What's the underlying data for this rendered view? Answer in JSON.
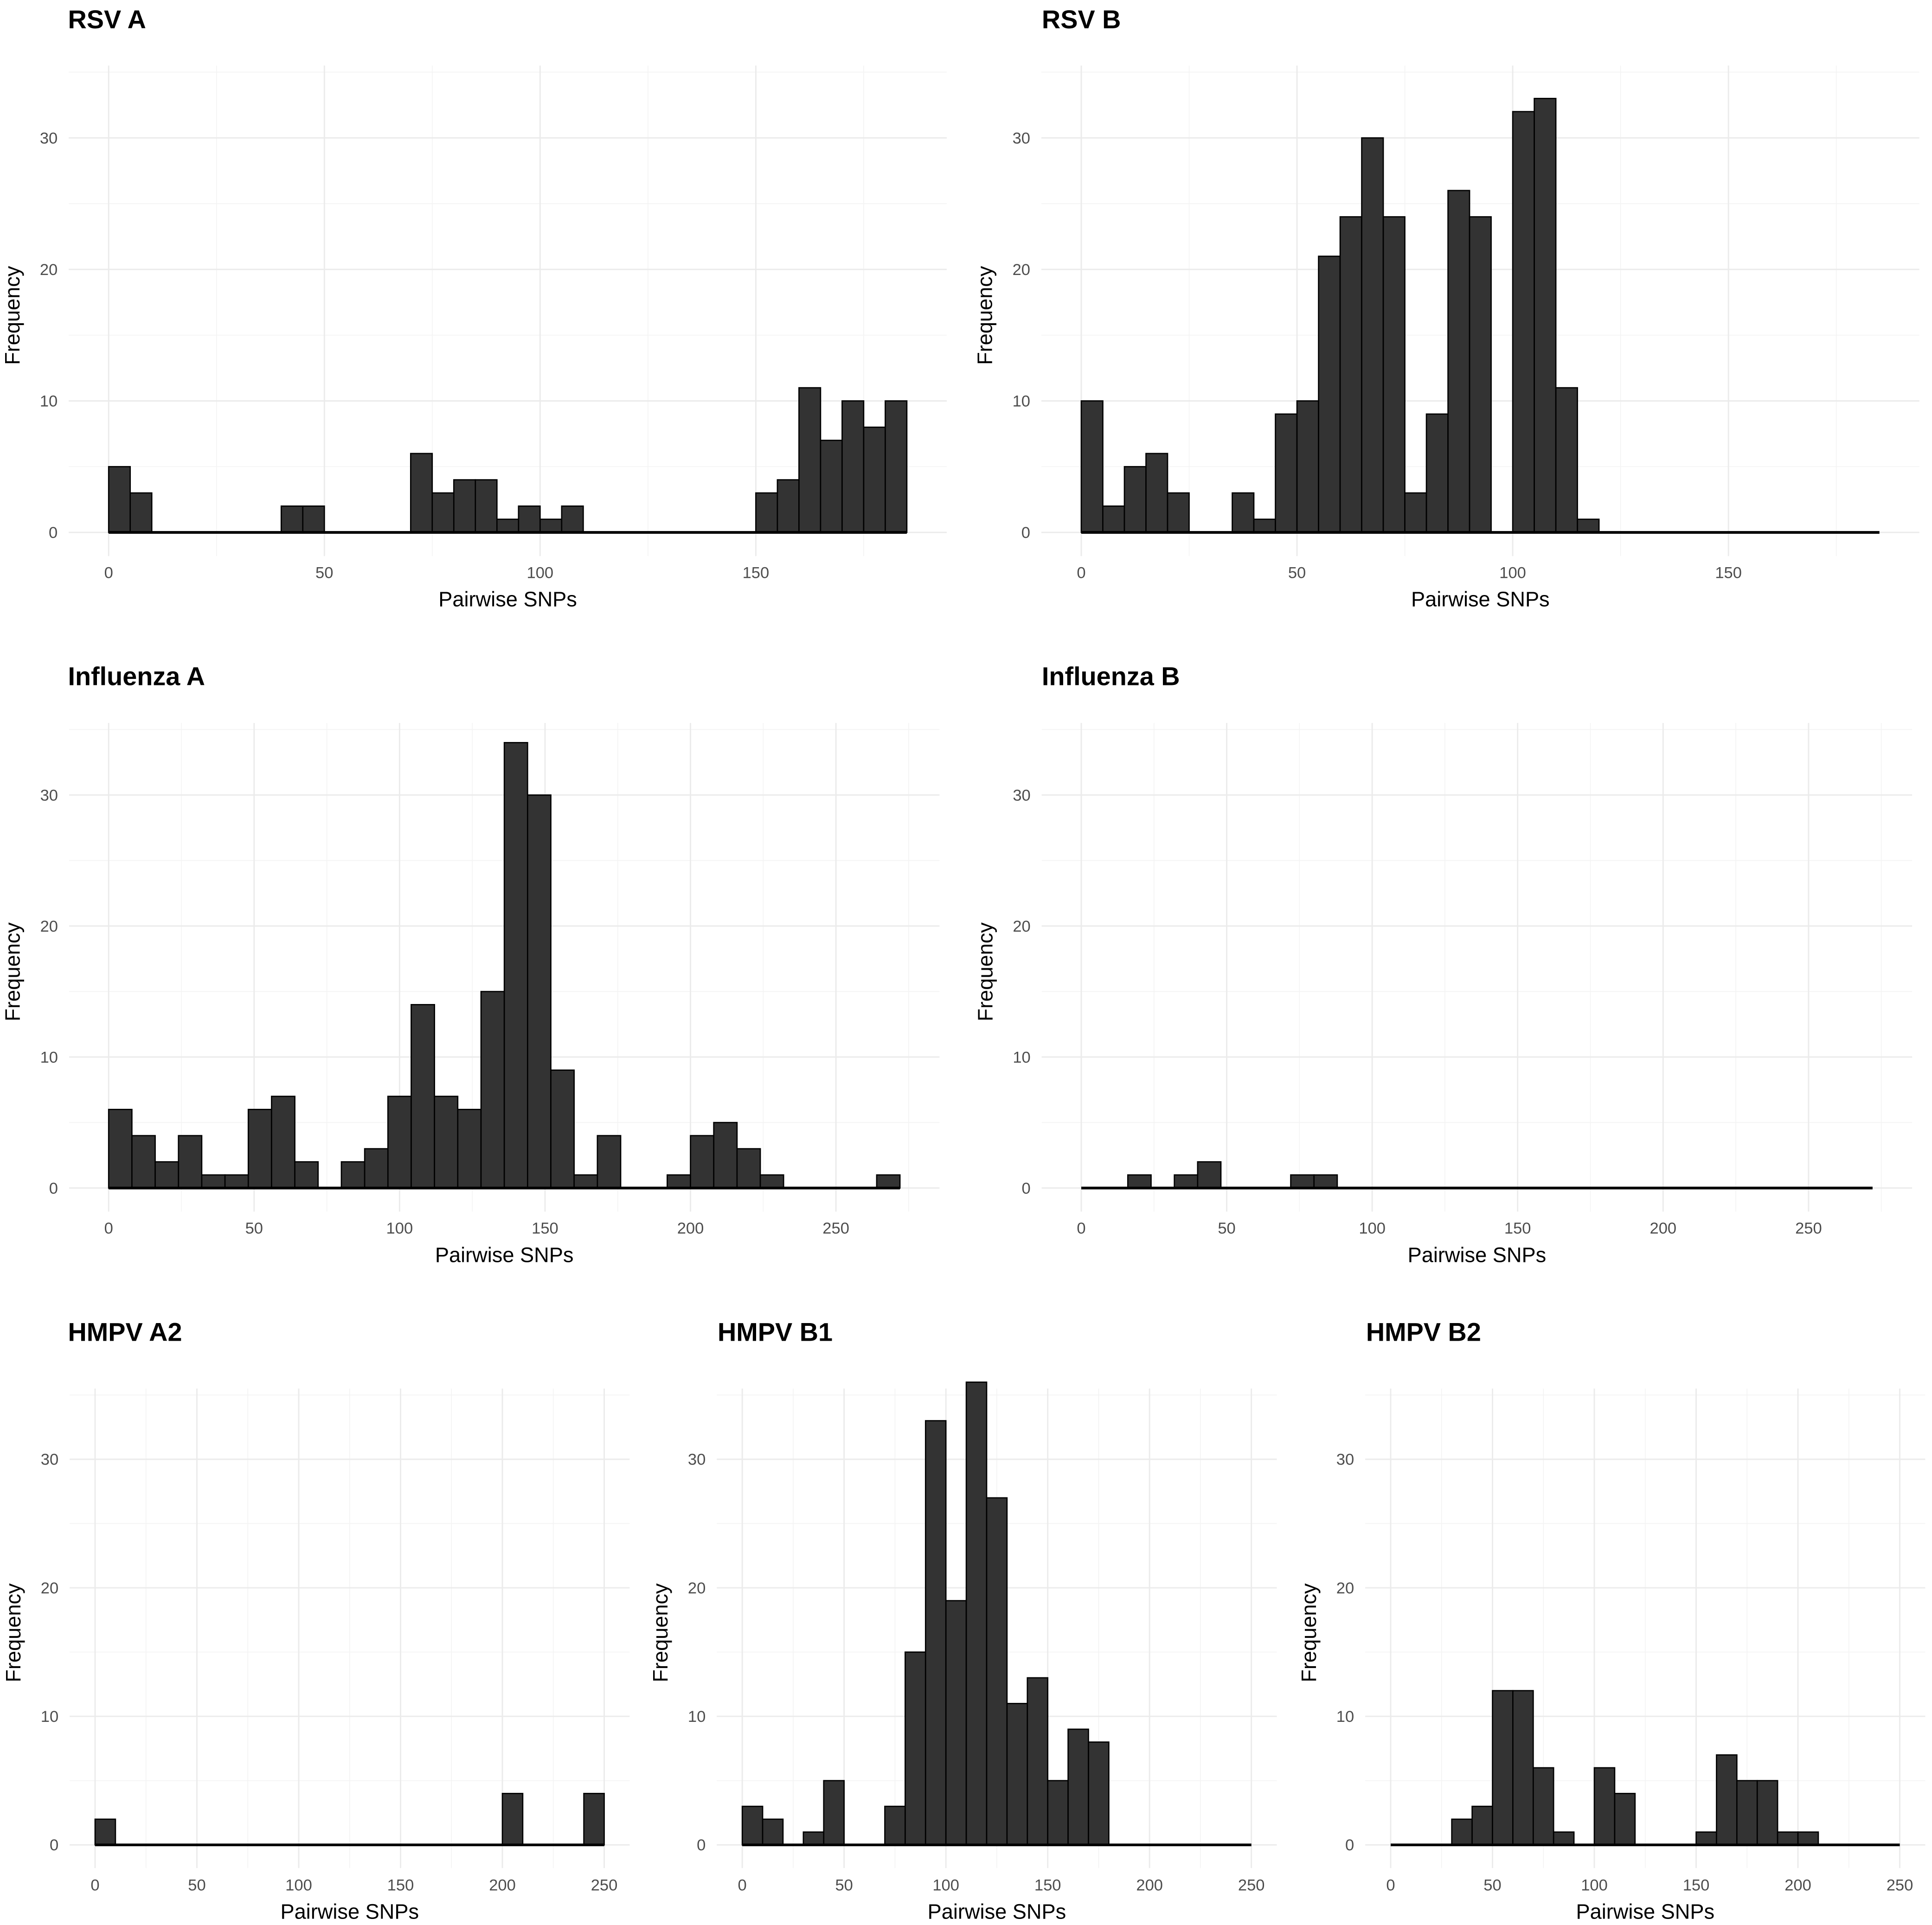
{
  "colors": {
    "bar_fill": "#333333",
    "bar_outline": "#000000",
    "grid": "#ebebeb",
    "background": "#ffffff"
  },
  "chart_data": [
    {
      "type": "bar",
      "title": "RSV A",
      "xlabel": "Pairwise SNPs",
      "ylabel": "Frequency",
      "bin_start": 0,
      "binwidth": 5,
      "xlim": [
        0,
        185
      ],
      "ylim": [
        0,
        36
      ],
      "grid": true,
      "x_ticks": [
        "0",
        "50",
        "100",
        "150"
      ],
      "y_ticks": [
        "0",
        "10",
        "20",
        "30"
      ],
      "counts": [
        5,
        3,
        0,
        0,
        0,
        0,
        0,
        0,
        2,
        2,
        0,
        0,
        0,
        0,
        6,
        3,
        4,
        4,
        1,
        2,
        1,
        2,
        0,
        0,
        0,
        0,
        0,
        0,
        0,
        0,
        3,
        4,
        11,
        7,
        10,
        8,
        10
      ]
    },
    {
      "type": "bar",
      "title": "RSV B",
      "xlabel": "Pairwise SNPs",
      "ylabel": "Frequency",
      "bin_start": 0,
      "binwidth": 5,
      "xlim": [
        0,
        185
      ],
      "ylim": [
        0,
        36
      ],
      "grid": true,
      "x_ticks": [
        "0",
        "50",
        "100",
        "150"
      ],
      "y_ticks": [
        "0",
        "10",
        "20",
        "30"
      ],
      "counts": [
        10,
        2,
        5,
        6,
        3,
        0,
        0,
        3,
        1,
        9,
        10,
        21,
        24,
        30,
        24,
        3,
        9,
        26,
        24,
        0,
        32,
        33,
        11,
        1,
        0,
        0,
        0,
        0,
        0,
        0,
        0,
        0,
        0,
        0,
        0,
        0,
        0
      ]
    },
    {
      "type": "bar",
      "title": "Influenza A",
      "xlabel": "Pairwise SNPs",
      "ylabel": "Frequency",
      "bin_start": 0,
      "binwidth": 8,
      "xlim": [
        0,
        272
      ],
      "ylim": [
        0,
        36
      ],
      "grid": true,
      "x_ticks": [
        "0",
        "50",
        "100",
        "150",
        "200",
        "250"
      ],
      "y_ticks": [
        "0",
        "10",
        "20",
        "30"
      ],
      "counts": [
        6,
        4,
        2,
        4,
        1,
        1,
        6,
        7,
        2,
        0,
        2,
        3,
        7,
        14,
        7,
        6,
        15,
        34,
        30,
        9,
        1,
        4,
        0,
        0,
        1,
        4,
        5,
        3,
        1,
        0,
        0,
        0,
        0,
        1
      ]
    },
    {
      "type": "bar",
      "title": "Influenza B",
      "xlabel": "Pairwise SNPs",
      "ylabel": "Frequency",
      "bin_start": 0,
      "binwidth": 8,
      "xlim": [
        0,
        272
      ],
      "ylim": [
        0,
        36
      ],
      "grid": true,
      "x_ticks": [
        "0",
        "50",
        "100",
        "150",
        "200",
        "250"
      ],
      "y_ticks": [
        "0",
        "10",
        "20",
        "30"
      ],
      "counts": [
        0,
        0,
        1,
        0,
        1,
        2,
        0,
        0,
        0,
        1,
        1,
        0,
        0,
        0,
        0,
        0,
        0,
        0,
        0,
        0,
        0,
        0,
        0,
        0,
        0,
        0,
        0,
        0,
        0,
        0,
        0,
        0,
        0,
        0
      ]
    },
    {
      "type": "bar",
      "title": "HMPV A2",
      "xlabel": "Pairwise SNPs",
      "ylabel": "Frequency",
      "bin_start": 0,
      "binwidth": 10,
      "xlim": [
        0,
        250
      ],
      "ylim": [
        0,
        36
      ],
      "grid": true,
      "x_ticks": [
        "0",
        "50",
        "100",
        "150",
        "200",
        "250"
      ],
      "y_ticks": [
        "0",
        "10",
        "20",
        "30"
      ],
      "counts": [
        2,
        0,
        0,
        0,
        0,
        0,
        0,
        0,
        0,
        0,
        0,
        0,
        0,
        0,
        0,
        0,
        0,
        0,
        0,
        0,
        4,
        0,
        0,
        0,
        4
      ]
    },
    {
      "type": "bar",
      "title": "HMPV B1",
      "xlabel": "Pairwise SNPs",
      "ylabel": "Frequency",
      "bin_start": 0,
      "binwidth": 10,
      "xlim": [
        0,
        250
      ],
      "ylim": [
        0,
        36
      ],
      "grid": true,
      "x_ticks": [
        "0",
        "50",
        "100",
        "150",
        "200",
        "250"
      ],
      "y_ticks": [
        "0",
        "10",
        "20",
        "30"
      ],
      "counts": [
        3,
        2,
        0,
        1,
        5,
        0,
        0,
        3,
        15,
        33,
        19,
        36,
        27,
        11,
        13,
        5,
        9,
        8,
        0,
        0,
        0,
        0,
        0,
        0,
        0
      ]
    },
    {
      "type": "bar",
      "title": "HMPV B2",
      "xlabel": "Pairwise SNPs",
      "ylabel": "Frequency",
      "bin_start": 0,
      "binwidth": 10,
      "xlim": [
        0,
        250
      ],
      "ylim": [
        0,
        36
      ],
      "grid": true,
      "x_ticks": [
        "0",
        "50",
        "100",
        "150",
        "200",
        "250"
      ],
      "y_ticks": [
        "0",
        "10",
        "20",
        "30"
      ],
      "counts": [
        0,
        0,
        0,
        2,
        3,
        12,
        12,
        6,
        1,
        0,
        6,
        4,
        0,
        0,
        0,
        1,
        7,
        5,
        5,
        1,
        1,
        0,
        0,
        0,
        0
      ]
    }
  ]
}
